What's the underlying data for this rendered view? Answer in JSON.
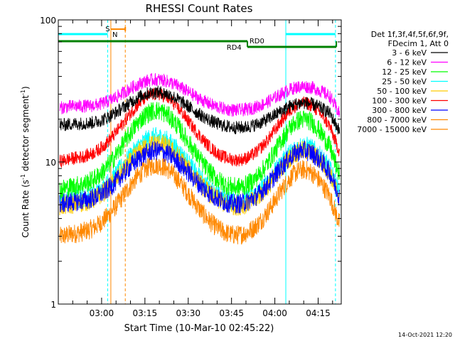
{
  "chart_data": {
    "type": "line",
    "title": "RHESSI Count Rates",
    "xlabel": "Start Time (10-Mar-10 02:45:22)",
    "ylabel_main": "Count Rate (s",
    "ylabel_sup": "-1",
    "ylabel_tail": " detector segment",
    "ylabel_sup2": "-1",
    "ylabel_close": ")",
    "yscale": "log",
    "ylim": [
      1,
      100
    ],
    "xlim_min": [
      0,
      98
    ],
    "y_ticks": [
      "1",
      "10",
      "100"
    ],
    "x_ticks": [
      {
        "label": "03:00",
        "t": 15
      },
      {
        "label": "03:15",
        "t": 30
      },
      {
        "label": "03:30",
        "t": 45
      },
      {
        "label": "03:45",
        "t": 60
      },
      {
        "label": "04:00",
        "t": 75
      },
      {
        "label": "04:15",
        "t": 90
      }
    ],
    "legend_header": [
      "Det 1f,3f,4f,5f,6f,9f,",
      "FDecim 1, Att 0"
    ],
    "series": [
      {
        "name": "3 - 6 keV",
        "color": "#000000",
        "peaks": [
          31,
          26
        ],
        "base": 16.5
      },
      {
        "name": "6 - 12 keV",
        "color": "#ff00ff",
        "peaks": [
          38,
          34
        ],
        "base": 22
      },
      {
        "name": "12 - 25 keV",
        "color": "#00ff00",
        "peaks": [
          23,
          20
        ],
        "base": 5.8
      },
      {
        "name": "25 - 50 keV",
        "color": "#00ffff",
        "peaks": [
          15,
          13
        ],
        "base": 4.7
      },
      {
        "name": "50 - 100 keV",
        "color": "#ffcc00",
        "peaks": [
          13.5,
          12
        ],
        "base": 4.4
      },
      {
        "name": "100 - 300 keV",
        "color": "#ff0000",
        "peaks": [
          30,
          26
        ],
        "base": 9.2
      },
      {
        "name": "300 - 800 keV",
        "color": "#0000ff",
        "peaks": [
          12,
          12
        ],
        "base": 4.6
      },
      {
        "name": "800 - 7000 keV",
        "color": "#ff8800",
        "peaks": [
          9.5,
          8.8
        ],
        "base": 2.7
      },
      {
        "name": "7000 - 15000 keV",
        "color": "#ff8800",
        "peaks": [
          9.5,
          8.8
        ],
        "base": 2.7
      }
    ],
    "annotations": {
      "saa_label": "S",
      "night_label": "N",
      "rd0_label": "RD0",
      "rd4_label": "RD4"
    },
    "timestamp": "14-Oct-2021 12:20",
    "grid": false,
    "legend_placement": "right"
  }
}
